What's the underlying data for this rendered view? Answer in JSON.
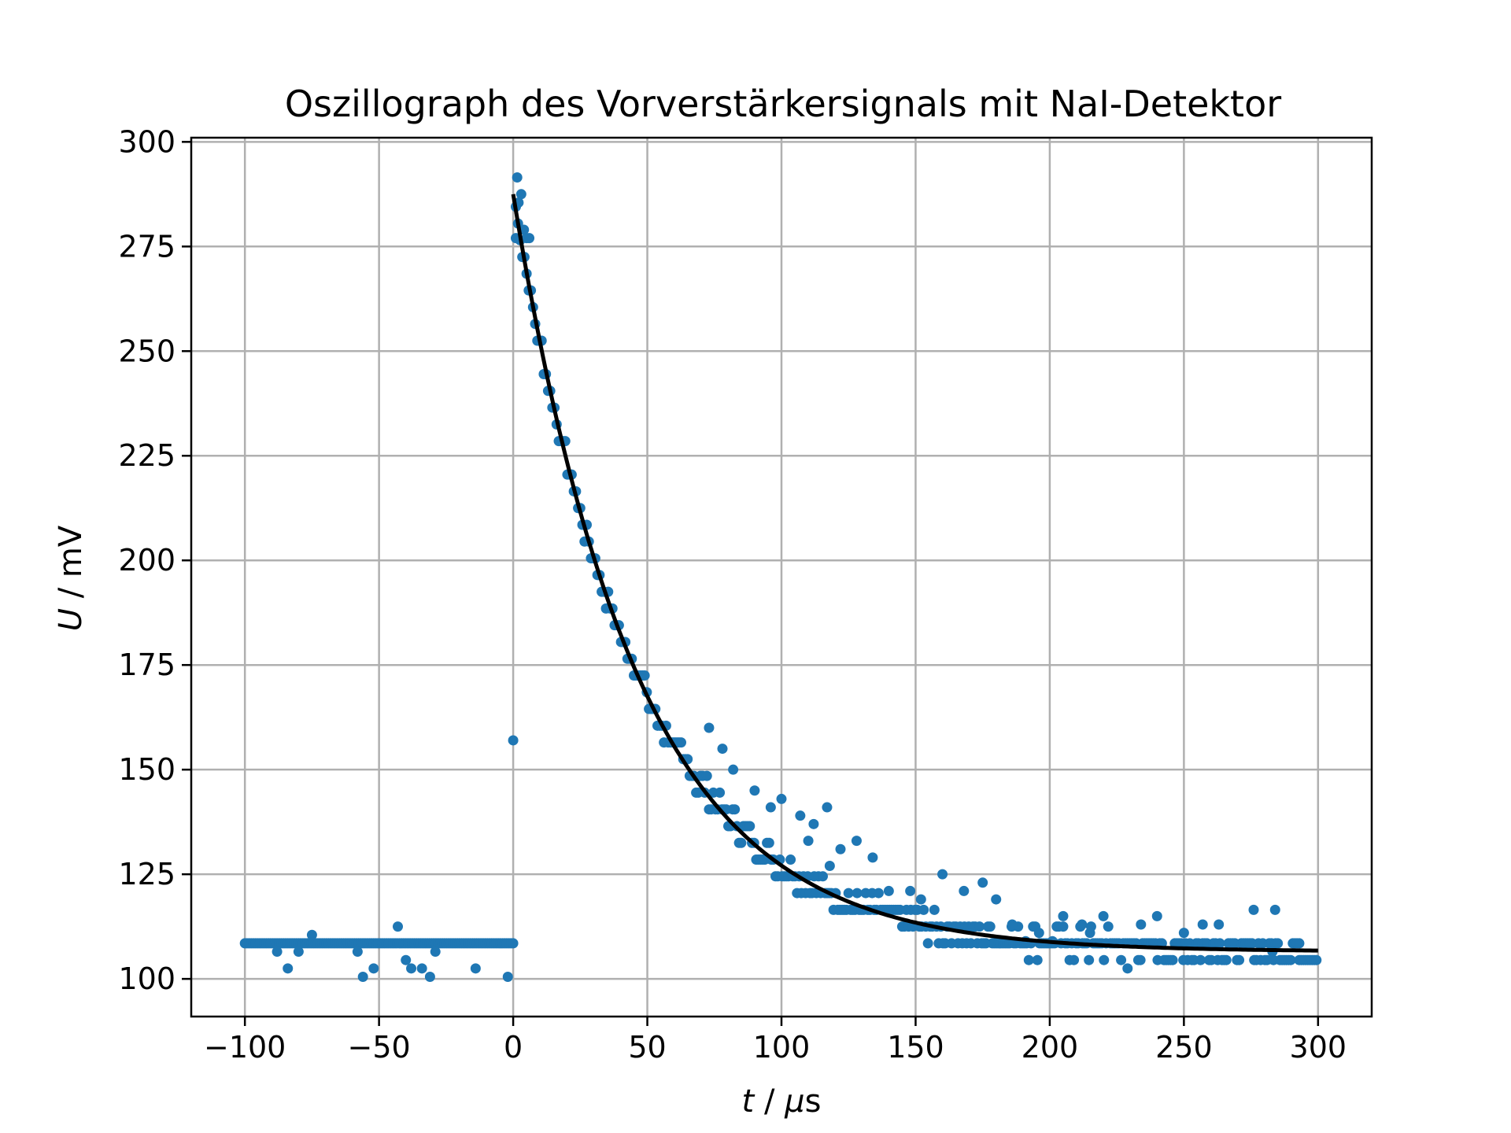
{
  "chart_data": {
    "type": "scatter",
    "title": "Oszillograph des Vorverstärkersignals mit NaI-Detektor",
    "xlabel": "t / μs",
    "ylabel": "U / mV",
    "xlim": [
      -120,
      320
    ],
    "ylim": [
      91,
      301
    ],
    "xticks": [
      -100,
      -50,
      0,
      50,
      100,
      150,
      200,
      250,
      300
    ],
    "xtick_labels": [
      "−100",
      "−50",
      "0",
      "50",
      "100",
      "150",
      "200",
      "250",
      "300"
    ],
    "yticks": [
      100,
      125,
      150,
      175,
      200,
      225,
      250,
      275,
      300
    ],
    "ytick_labels": [
      "100",
      "125",
      "150",
      "175",
      "200",
      "225",
      "250",
      "275",
      "300"
    ],
    "grid": true,
    "colors": {
      "points": "#1f77b4",
      "fit": "#000000"
    },
    "points_baseline": {
      "x_start": -100,
      "x_end": 0,
      "x_step": 0.8,
      "y": 108.5
    },
    "points_outliers": [
      [
        -88,
        106.5
      ],
      [
        -84,
        102.5
      ],
      [
        -80,
        106.5
      ],
      [
        -75,
        110.5
      ],
      [
        -58,
        106.5
      ],
      [
        -56,
        100.5
      ],
      [
        -52,
        102.5
      ],
      [
        -43,
        112.5
      ],
      [
        -40,
        104.5
      ],
      [
        -38,
        102.5
      ],
      [
        -34,
        102.5
      ],
      [
        -31,
        100.5
      ],
      [
        -29,
        106.5
      ],
      [
        -14,
        102.5
      ],
      [
        -2,
        100.5
      ],
      [
        0,
        157
      ],
      [
        1,
        277
      ],
      [
        1.5,
        291.5
      ],
      [
        2,
        285.5
      ],
      [
        3,
        287.5
      ],
      [
        4,
        279
      ],
      [
        5,
        277
      ],
      [
        6,
        277
      ],
      [
        73,
        160
      ],
      [
        78,
        155
      ],
      [
        82,
        150
      ],
      [
        90,
        145
      ],
      [
        96,
        141
      ],
      [
        100,
        143
      ],
      [
        107,
        139
      ],
      [
        110,
        133
      ],
      [
        112,
        137
      ],
      [
        117,
        141
      ],
      [
        118,
        127
      ],
      [
        122,
        131
      ],
      [
        128,
        133
      ],
      [
        134,
        129
      ],
      [
        140,
        121
      ],
      [
        148,
        121
      ],
      [
        152,
        119
      ],
      [
        160,
        125
      ],
      [
        168,
        121
      ],
      [
        175,
        123
      ],
      [
        180,
        119
      ],
      [
        186,
        113
      ],
      [
        191,
        109
      ],
      [
        196,
        111
      ],
      [
        201,
        109
      ],
      [
        205,
        115
      ],
      [
        212,
        113
      ],
      [
        215,
        111
      ],
      [
        220,
        115
      ],
      [
        229,
        102.5
      ],
      [
        234,
        113
      ],
      [
        240,
        115
      ],
      [
        250,
        111
      ],
      [
        257,
        113
      ],
      [
        263,
        113
      ],
      [
        276,
        116.5
      ],
      [
        284,
        116.5
      ],
      [
        283,
        106.5
      ],
      [
        293,
        104.5
      ]
    ],
    "fit_curve": {
      "A": 181,
      "tau": 46,
      "offset": 106.5,
      "x_start": 0,
      "x_end": 300
    },
    "decay_noise_band": {
      "x_start": 0,
      "x_end": 300,
      "quantization_mV": 4
    }
  }
}
